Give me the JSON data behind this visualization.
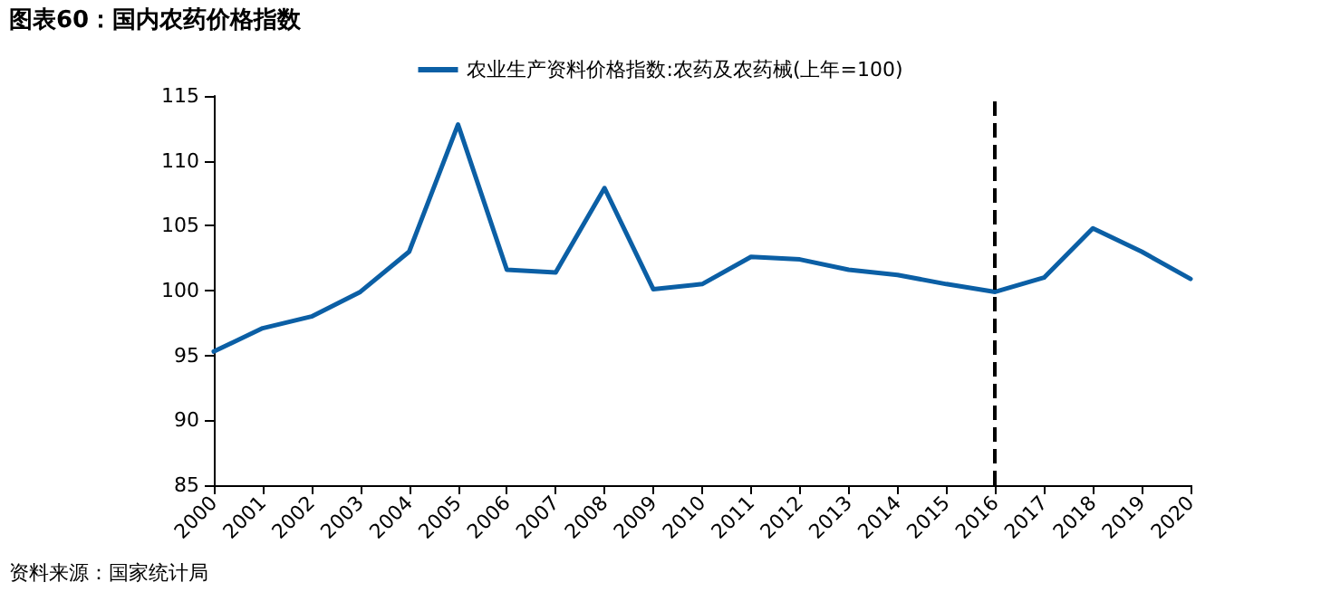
{
  "chart_data": {
    "type": "line",
    "title": "图表60：国内农药价格指数",
    "categories": [
      "2000",
      "2001",
      "2002",
      "2003",
      "2004",
      "2005",
      "2006",
      "2007",
      "2008",
      "2009",
      "2010",
      "2011",
      "2012",
      "2013",
      "2014",
      "2015",
      "2016",
      "2017",
      "2018",
      "2019",
      "2020"
    ],
    "series": [
      {
        "name": "农业生产资料价格指数:农药及农药械(上年=100)",
        "color": "#0b5fa5",
        "values": [
          95.3,
          97.1,
          98.0,
          99.9,
          103.0,
          112.8,
          101.6,
          101.4,
          107.9,
          100.1,
          100.5,
          102.6,
          102.4,
          101.6,
          101.2,
          100.5,
          99.9,
          101.0,
          104.8,
          103.0,
          100.9
        ]
      }
    ],
    "ylim": [
      85,
      115
    ],
    "yticks": [
      85,
      90,
      95,
      100,
      105,
      110,
      115
    ],
    "grid": false,
    "legend": "top",
    "marker": "none",
    "line_style": "solid",
    "ref_lines": [
      {
        "axis": "x",
        "value": "2016",
        "color": "#000000",
        "line_style": "dashed"
      }
    ],
    "annotations": [
      "资料来源：国家统计局"
    ]
  }
}
